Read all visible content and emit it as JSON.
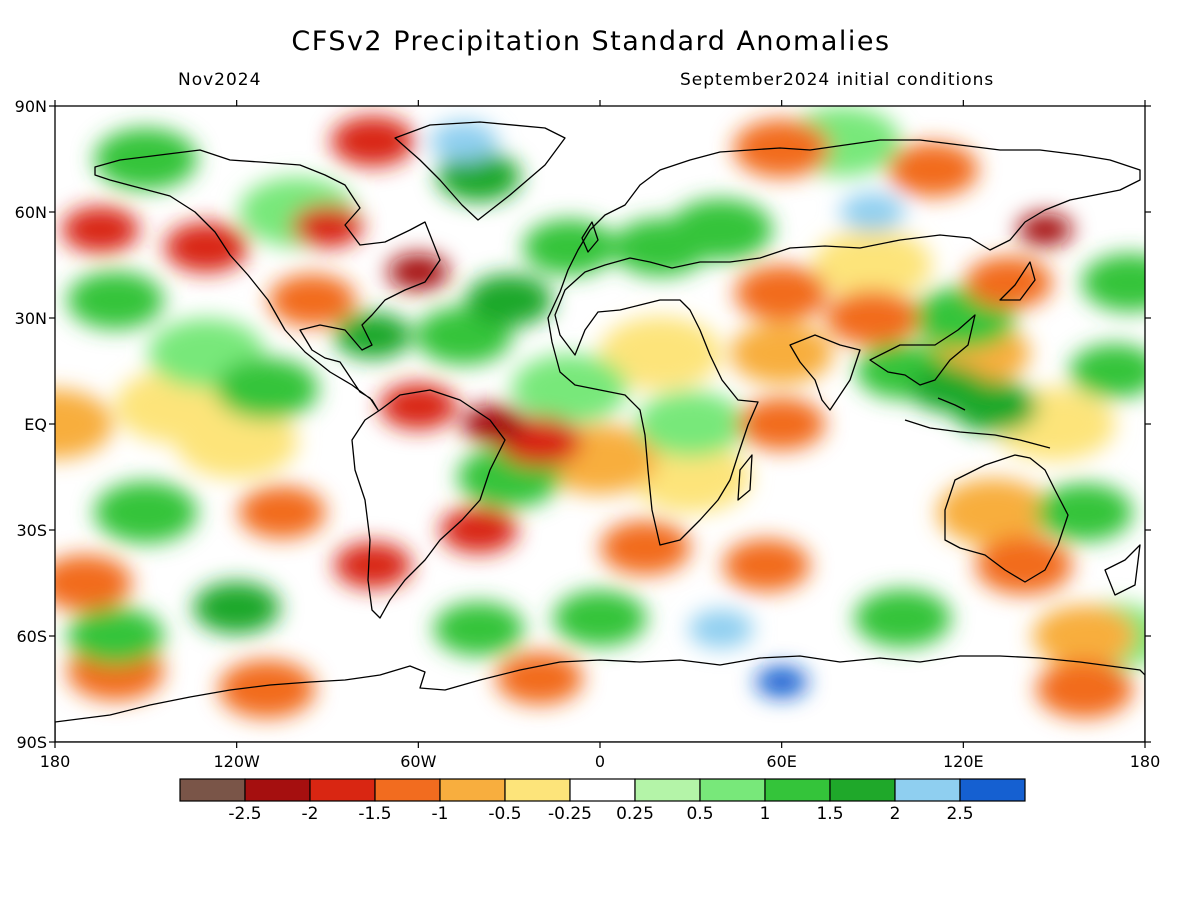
{
  "title": "CFSv2 Precipitation Standard Anomalies",
  "valid_month": "Nov2024",
  "initial_conditions": "September2024 initial conditions",
  "lat_labels": [
    "90N",
    "60N",
    "30N",
    "EQ",
    "30S",
    "60S",
    "90S"
  ],
  "lon_labels": [
    "180",
    "120W",
    "60W",
    "0",
    "60E",
    "120E",
    "180"
  ],
  "colorbar": {
    "colors": [
      "#7a5548",
      "#a50f0f",
      "#d92612",
      "#f26c1f",
      "#f8ae3e",
      "#fde47a",
      "#ffffff",
      "#b4f4a8",
      "#78e87a",
      "#34c43a",
      "#1fa82a",
      "#8fcff0",
      "#1560d1"
    ],
    "labels": [
      "-2.5",
      "-2",
      "-1.5",
      "-1",
      "-0.5",
      "-0.25",
      "0.25",
      "0.5",
      "1",
      "1.5",
      "2",
      "2.5"
    ]
  },
  "chart_data": {
    "type": "heatmap",
    "title": "CFSv2 Precipitation Standard Anomalies",
    "x_range": [
      -180,
      180
    ],
    "y_range": [
      -90,
      90
    ],
    "xticks": [
      "180",
      "120W",
      "60W",
      "0",
      "60E",
      "120E",
      "180"
    ],
    "yticks": [
      "90N",
      "60N",
      "30N",
      "EQ",
      "30S",
      "60S",
      "90S"
    ],
    "bins": [
      -2.5,
      -2,
      -1.5,
      -1,
      -0.5,
      -0.25,
      0.25,
      0.5,
      1,
      1.5,
      2,
      2.5
    ],
    "anomaly_regions": [
      {
        "lon": -35,
        "lat": 0,
        "value": -2.2
      },
      {
        "lon": -60,
        "lat": 5,
        "value": -1.8
      },
      {
        "lon": -20,
        "lat": -5,
        "value": -1.6
      },
      {
        "lon": -105,
        "lat": -25,
        "value": -1.5
      },
      {
        "lon": -75,
        "lat": -40,
        "value": -1.8
      },
      {
        "lon": -40,
        "lat": -30,
        "value": -1.8
      },
      {
        "lon": 15,
        "lat": -35,
        "value": -1.4
      },
      {
        "lon": 55,
        "lat": -40,
        "value": -1.5
      },
      {
        "lon": -170,
        "lat": -45,
        "value": -1.3
      },
      {
        "lon": 140,
        "lat": -40,
        "value": -1.2
      },
      {
        "lon": 160,
        "lat": -60,
        "value": -1.0
      },
      {
        "lon": -95,
        "lat": 35,
        "value": -1.5
      },
      {
        "lon": -130,
        "lat": 50,
        "value": -1.6
      },
      {
        "lon": -165,
        "lat": 55,
        "value": -1.8
      },
      {
        "lon": -75,
        "lat": 80,
        "value": -1.6
      },
      {
        "lon": -60,
        "lat": 43,
        "value": -2.3
      },
      {
        "lon": -90,
        "lat": 56,
        "value": -2.0
      },
      {
        "lon": 60,
        "lat": 37,
        "value": -1.3
      },
      {
        "lon": 90,
        "lat": 30,
        "value": -1.3
      },
      {
        "lon": 135,
        "lat": 40,
        "value": -1.5
      },
      {
        "lon": 147,
        "lat": 55,
        "value": -2.5
      },
      {
        "lon": 60,
        "lat": 0,
        "value": -1.5
      },
      {
        "lon": 60,
        "lat": 20,
        "value": -1.0
      },
      {
        "lon": 125,
        "lat": 20,
        "value": -1.0
      },
      {
        "lon": 0,
        "lat": -10,
        "value": -0.6
      },
      {
        "lon": 30,
        "lat": -15,
        "value": -0.5
      },
      {
        "lon": 130,
        "lat": -25,
        "value": -0.7
      },
      {
        "lon": -180,
        "lat": 0,
        "value": -0.6
      },
      {
        "lon": -140,
        "lat": 5,
        "value": -0.4
      },
      {
        "lon": 150,
        "lat": 0,
        "value": -0.4
      },
      {
        "lon": -120,
        "lat": -5,
        "value": -0.4
      },
      {
        "lon": 20,
        "lat": 20,
        "value": -0.4
      },
      {
        "lon": 90,
        "lat": 45,
        "value": -0.5
      },
      {
        "lon": -110,
        "lat": -75,
        "value": -1.2
      },
      {
        "lon": -20,
        "lat": -72,
        "value": -1.5
      },
      {
        "lon": 160,
        "lat": -75,
        "value": -1.2
      },
      {
        "lon": -160,
        "lat": -70,
        "value": -1.2
      },
      {
        "lon": 60,
        "lat": 78,
        "value": -1.2
      },
      {
        "lon": 110,
        "lat": 72,
        "value": -1.4
      },
      {
        "lon": 90,
        "lat": 60,
        "value": 2.2
      },
      {
        "lon": 60,
        "lat": -73,
        "value": 2.6
      },
      {
        "lon": 115,
        "lat": 10,
        "value": 1.8
      },
      {
        "lon": 130,
        "lat": 5,
        "value": 1.5
      },
      {
        "lon": 100,
        "lat": 15,
        "value": 1.3
      },
      {
        "lon": 120,
        "lat": 30,
        "value": 1.0
      },
      {
        "lon": 170,
        "lat": 15,
        "value": 1.4
      },
      {
        "lon": 175,
        "lat": 40,
        "value": 1.2
      },
      {
        "lon": -40,
        "lat": 70,
        "value": 1.6
      },
      {
        "lon": -45,
        "lat": 80,
        "value": 2.1
      },
      {
        "lon": -30,
        "lat": 35,
        "value": 1.5
      },
      {
        "lon": -75,
        "lat": 25,
        "value": 1.8
      },
      {
        "lon": -45,
        "lat": 25,
        "value": 1.2
      },
      {
        "lon": 40,
        "lat": -58,
        "value": 2.2
      },
      {
        "lon": -120,
        "lat": -52,
        "value": 1.5
      },
      {
        "lon": -40,
        "lat": -58,
        "value": 1.4
      },
      {
        "lon": 0,
        "lat": -55,
        "value": 1.3
      },
      {
        "lon": 100,
        "lat": -55,
        "value": 1.2
      },
      {
        "lon": -160,
        "lat": -60,
        "value": 1.2
      },
      {
        "lon": 160,
        "lat": -25,
        "value": 1.2
      },
      {
        "lon": -150,
        "lat": -25,
        "value": 1.0
      },
      {
        "lon": -10,
        "lat": 50,
        "value": 1.3
      },
      {
        "lon": 20,
        "lat": 50,
        "value": 1.2
      },
      {
        "lon": 40,
        "lat": 55,
        "value": 1.0
      },
      {
        "lon": -110,
        "lat": 10,
        "value": 1.0
      },
      {
        "lon": -160,
        "lat": 35,
        "value": 1.2
      },
      {
        "lon": -30,
        "lat": -15,
        "value": 1.0
      },
      {
        "lon": -150,
        "lat": 75,
        "value": 1.0
      },
      {
        "lon": 30,
        "lat": 0,
        "value": 0.8
      },
      {
        "lon": -10,
        "lat": 10,
        "value": 0.6
      },
      {
        "lon": 170,
        "lat": -60,
        "value": 0.8
      },
      {
        "lon": 80,
        "lat": 80,
        "value": 0.6
      },
      {
        "lon": -100,
        "lat": 60,
        "value": 0.6
      },
      {
        "lon": -130,
        "lat": 20,
        "value": 0.6
      }
    ]
  }
}
